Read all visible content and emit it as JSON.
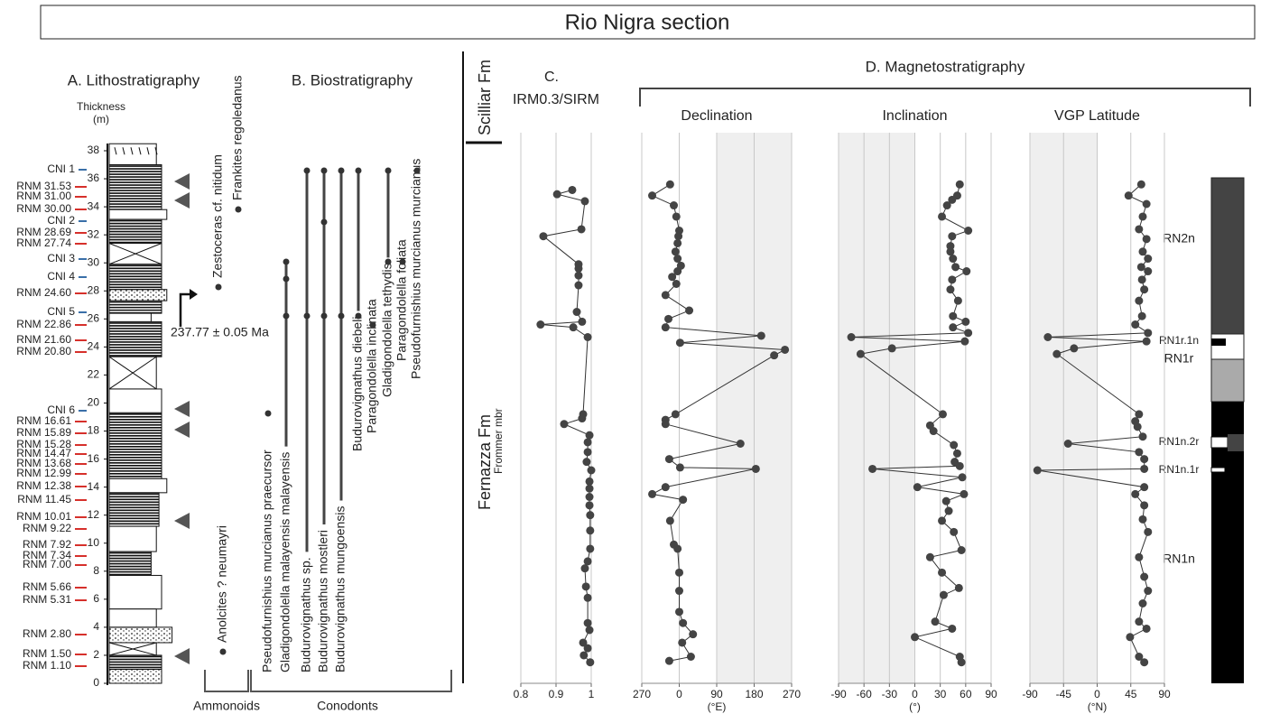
{
  "title": "Rio Nigra section",
  "lithostratigraphy": {
    "title": "A. Lithostratigraphy",
    "axis_label": [
      "Thickness",
      "(m)"
    ],
    "ylim": [
      0,
      38
    ],
    "yticks": [
      0,
      2,
      4,
      6,
      8,
      10,
      12,
      14,
      16,
      18,
      20,
      22,
      24,
      26,
      28,
      30,
      32,
      34,
      36,
      38
    ],
    "samples": [
      "CNI 1",
      "RNM 31.53",
      "RNM 31.00",
      "RNM 30.00",
      "CNI 2",
      "RNM 28.69",
      "RNM 27.74",
      "CNI 3",
      "CNI 4",
      "RNM 24.60",
      "CNI 5",
      "RNM 22.86",
      "RNM 21.60",
      "RNM 20.80",
      "CNI 6",
      "RNM 16.61",
      "RNM 15.89",
      "RNM 15.28",
      "RNM 14.47",
      "RNM 13.68",
      "RNM 12.99",
      "RNM 12.38",
      "RNM 11.45",
      "RNM 10.01",
      "RNM 9.22",
      "RNM 7.92",
      "RNM 7.34",
      "RNM 7.00",
      "RNM 5.66",
      "RNM 5.31",
      "RNM 2.80",
      "RNM 1.50",
      "RNM 1.10"
    ],
    "age": "237.77 ± 0.05 Ma"
  },
  "biostratigraphy": {
    "title": "B. Biostratigraphy",
    "ammonoids": {
      "label": "Ammonoids",
      "taxa": [
        "Anolcites ? neumayri",
        "Zestoceras cf. nitidum",
        "Frankites regoledanus"
      ]
    },
    "conodonts": {
      "label": "Conodonts",
      "taxa": [
        "Pseudofurnishius murcianus praecursor",
        "Gladigondolella malayensis malayensis",
        "Budurovignathus sp.",
        "Budurovignathus mostleri",
        "Budurovignathus mungoensis",
        "Budurovignathus diebeli",
        "Paragondolella inclinata",
        "Gladigondolella tethydis",
        "Paragondolella foliata",
        "Pseudofurnishius murcianus murcianus"
      ]
    }
  },
  "formations": {
    "upper": "Scilliar Fm",
    "lower": "Fernazza Fm",
    "member": "Frommer mbr"
  },
  "magnetostratigraphy_title": "D. Magnetostratigraphy",
  "polarity_zones": [
    "RN2n",
    "RN1r.1n",
    "RN1r",
    "RN1n.2r",
    "RN1n.1r",
    "RN1n"
  ],
  "chart_data": [
    {
      "type": "line",
      "panel": "C.",
      "title": "IRM0.3/SIRM",
      "color": "#444444",
      "grid": true,
      "xlim": [
        0.8,
        1
      ],
      "xticks": [
        0.8,
        0.9,
        1
      ],
      "ylim": [
        0,
        38
      ],
      "y": [
        35.2,
        34.9,
        34.4,
        32.4,
        31.9,
        29.9,
        29.6,
        29.1,
        28.4,
        26.5,
        25.8,
        25.6,
        25.4,
        24.7,
        19.2,
        18.9,
        18.5,
        17.7,
        17.2,
        16.5,
        15.8,
        15.2,
        14.4,
        13.9,
        13.3,
        12.7,
        12.0,
        10.9,
        9.6,
        8.7,
        8.2,
        6.9,
        6.1,
        4.3,
        3.8,
        2.9,
        2.5,
        2.0,
        1.5
      ],
      "x": [
        0.946,
        0.903,
        0.982,
        0.972,
        0.864,
        0.964,
        0.964,
        0.964,
        0.964,
        0.959,
        0.974,
        0.856,
        0.949,
        0.99,
        0.977,
        0.974,
        0.923,
        0.995,
        0.99,
        0.99,
        0.987,
        1.0,
        0.995,
        0.995,
        0.995,
        0.995,
        0.997,
        0.997,
        0.997,
        0.99,
        0.982,
        0.985,
        0.99,
        0.99,
        0.995,
        0.977,
        0.99,
        0.979,
        0.997
      ]
    },
    {
      "type": "line",
      "title": "Declination",
      "xlabel": "(°E)",
      "color": "#444444",
      "grid": true,
      "shade": [
        90,
        270
      ],
      "xlim": [
        -90,
        270
      ],
      "xticks": [
        {
          "value": -90,
          "label": "270"
        },
        0,
        90,
        180,
        270
      ],
      "ylim": [
        0,
        38
      ],
      "y": [
        35.6,
        34.8,
        34.1,
        33.3,
        32.3,
        31.9,
        31.4,
        30.8,
        30.3,
        29.8,
        29.4,
        29.0,
        28.5,
        27.7,
        26.6,
        26.0,
        25.4,
        24.8,
        24.3,
        23.8,
        23.4,
        19.2,
        18.8,
        18.5,
        17.1,
        16.0,
        15.4,
        15.3,
        14.0,
        13.5,
        13.1,
        11.6,
        9.9,
        9.6,
        7.9,
        6.6,
        5.1,
        4.3,
        3.5,
        2.9,
        1.9,
        1.6
      ],
      "x": [
        -22,
        -65,
        -13,
        -7,
        0,
        -2,
        -4,
        -9,
        -4,
        4,
        -4,
        -17,
        -7,
        -33,
        24,
        -26,
        -33,
        197,
        2,
        254,
        228,
        -9,
        -33,
        -33,
        147,
        -24,
        2,
        184,
        -33,
        -65,
        9,
        -22,
        -13,
        -4,
        0,
        0,
        0,
        9,
        33,
        7,
        28,
        -24
      ]
    },
    {
      "type": "line",
      "title": "Inclination",
      "xlabel": "(°)",
      "color": "#444444",
      "grid": true,
      "shade": [
        -90,
        0
      ],
      "xlim": [
        -90,
        90
      ],
      "xticks": [
        -90,
        -60,
        -30,
        0,
        30,
        60,
        90
      ],
      "ylim": [
        0,
        38
      ],
      "y": [
        35.6,
        34.8,
        34.5,
        34.1,
        33.3,
        32.3,
        31.9,
        31.2,
        30.8,
        30.3,
        29.7,
        29.4,
        28.8,
        28.1,
        27.3,
        26.2,
        25.8,
        25.4,
        25.0,
        24.7,
        24.4,
        23.9,
        23.5,
        19.2,
        18.4,
        18.0,
        17.0,
        16.4,
        15.8,
        15.5,
        15.3,
        14.7,
        14.0,
        13.5,
        13.0,
        12.3,
        11.6,
        10.8,
        9.5,
        9.0,
        7.9,
        6.8,
        6.3,
        4.4,
        3.9,
        3.3,
        1.9,
        1.5
      ],
      "x": [
        53,
        50,
        44,
        38,
        32,
        63,
        44,
        42,
        42,
        45,
        48,
        61,
        44,
        42,
        51,
        45,
        60,
        45,
        63,
        -75,
        59,
        -27,
        -64,
        33,
        18,
        22,
        46,
        50,
        47,
        53,
        -50,
        56,
        3,
        58,
        37,
        40,
        32,
        46,
        55,
        18,
        32,
        52,
        34,
        24,
        44,
        0,
        53,
        55
      ]
    },
    {
      "type": "line",
      "title": "VGP Latitude",
      "xlabel": "(°N)",
      "color": "#444444",
      "grid": true,
      "shade": [
        -90,
        0
      ],
      "xlim": [
        -90,
        90
      ],
      "xticks": [
        -90,
        -45,
        0,
        45,
        90
      ],
      "ylim": [
        0,
        38
      ],
      "y": [
        35.6,
        34.8,
        34.2,
        33.3,
        32.4,
        31.7,
        30.8,
        30.3,
        29.7,
        29.4,
        28.8,
        28.1,
        27.3,
        26.2,
        25.6,
        25.0,
        24.7,
        24.4,
        23.9,
        23.5,
        19.2,
        18.7,
        18.3,
        17.6,
        17.1,
        16.5,
        16.0,
        15.3,
        15.2,
        14.0,
        13.5,
        12.7,
        11.7,
        10.8,
        9.0,
        7.6,
        6.6,
        5.7,
        4.4,
        3.9,
        3.3,
        1.9,
        1.5
      ],
      "x": [
        59,
        42,
        66,
        61,
        56,
        66,
        61,
        68,
        59,
        68,
        60,
        63,
        56,
        60,
        51,
        68,
        -66,
        66,
        -31,
        -54,
        56,
        51,
        54,
        61,
        -39,
        56,
        63,
        63,
        -80,
        63,
        51,
        63,
        61,
        68,
        56,
        63,
        68,
        61,
        56,
        66,
        44,
        56,
        63
      ]
    }
  ]
}
